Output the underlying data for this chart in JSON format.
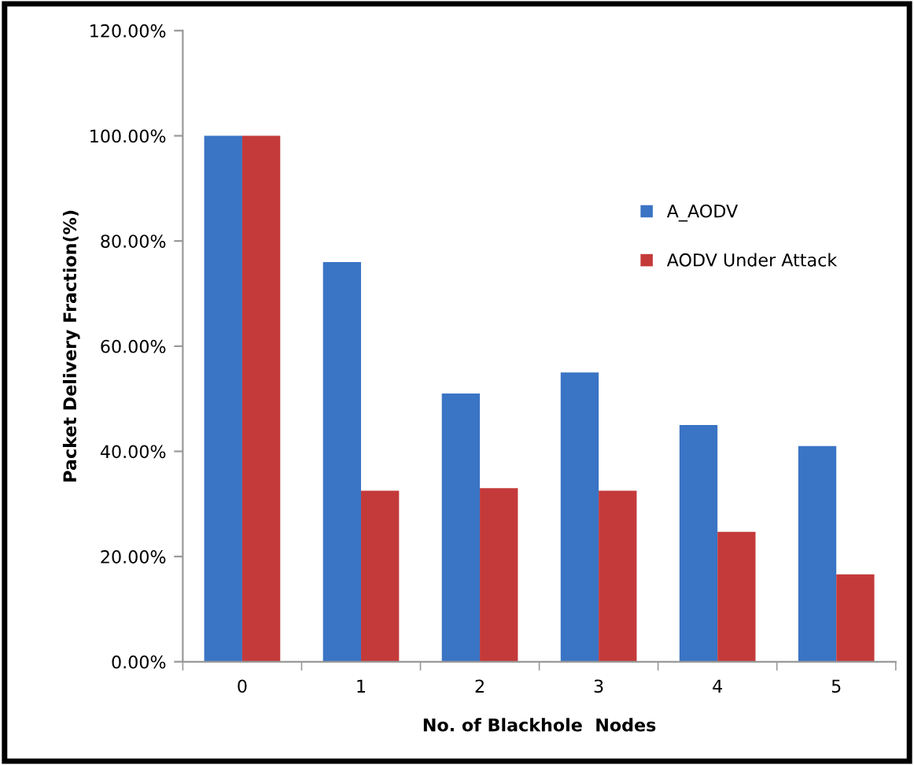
{
  "chart_data": {
    "type": "bar",
    "xlabel": "No. of Blackhole  Nodes",
    "ylabel": "Packet Delivery Fraction(%)",
    "categories": [
      "0",
      "1",
      "2",
      "3",
      "4",
      "5"
    ],
    "series": [
      {
        "name": "A_AODV",
        "color": "#3a74c4",
        "values": [
          100,
          76,
          51,
          55,
          45,
          41
        ]
      },
      {
        "name": "AODV Under Attack",
        "color": "#c43a3a",
        "values": [
          100,
          32.5,
          33,
          32.5,
          24.7,
          16.6
        ]
      }
    ],
    "ylim": [
      0,
      120
    ],
    "yticks": [
      {
        "value": 0,
        "label": "0.00%"
      },
      {
        "value": 20,
        "label": "20.00%"
      },
      {
        "value": 40,
        "label": "40.00%"
      },
      {
        "value": 60,
        "label": "60.00%"
      },
      {
        "value": 80,
        "label": "80.00%"
      },
      {
        "value": 100,
        "label": "100.00%"
      },
      {
        "value": 120,
        "label": "120.00%"
      }
    ],
    "grid": false,
    "legend": "right"
  }
}
